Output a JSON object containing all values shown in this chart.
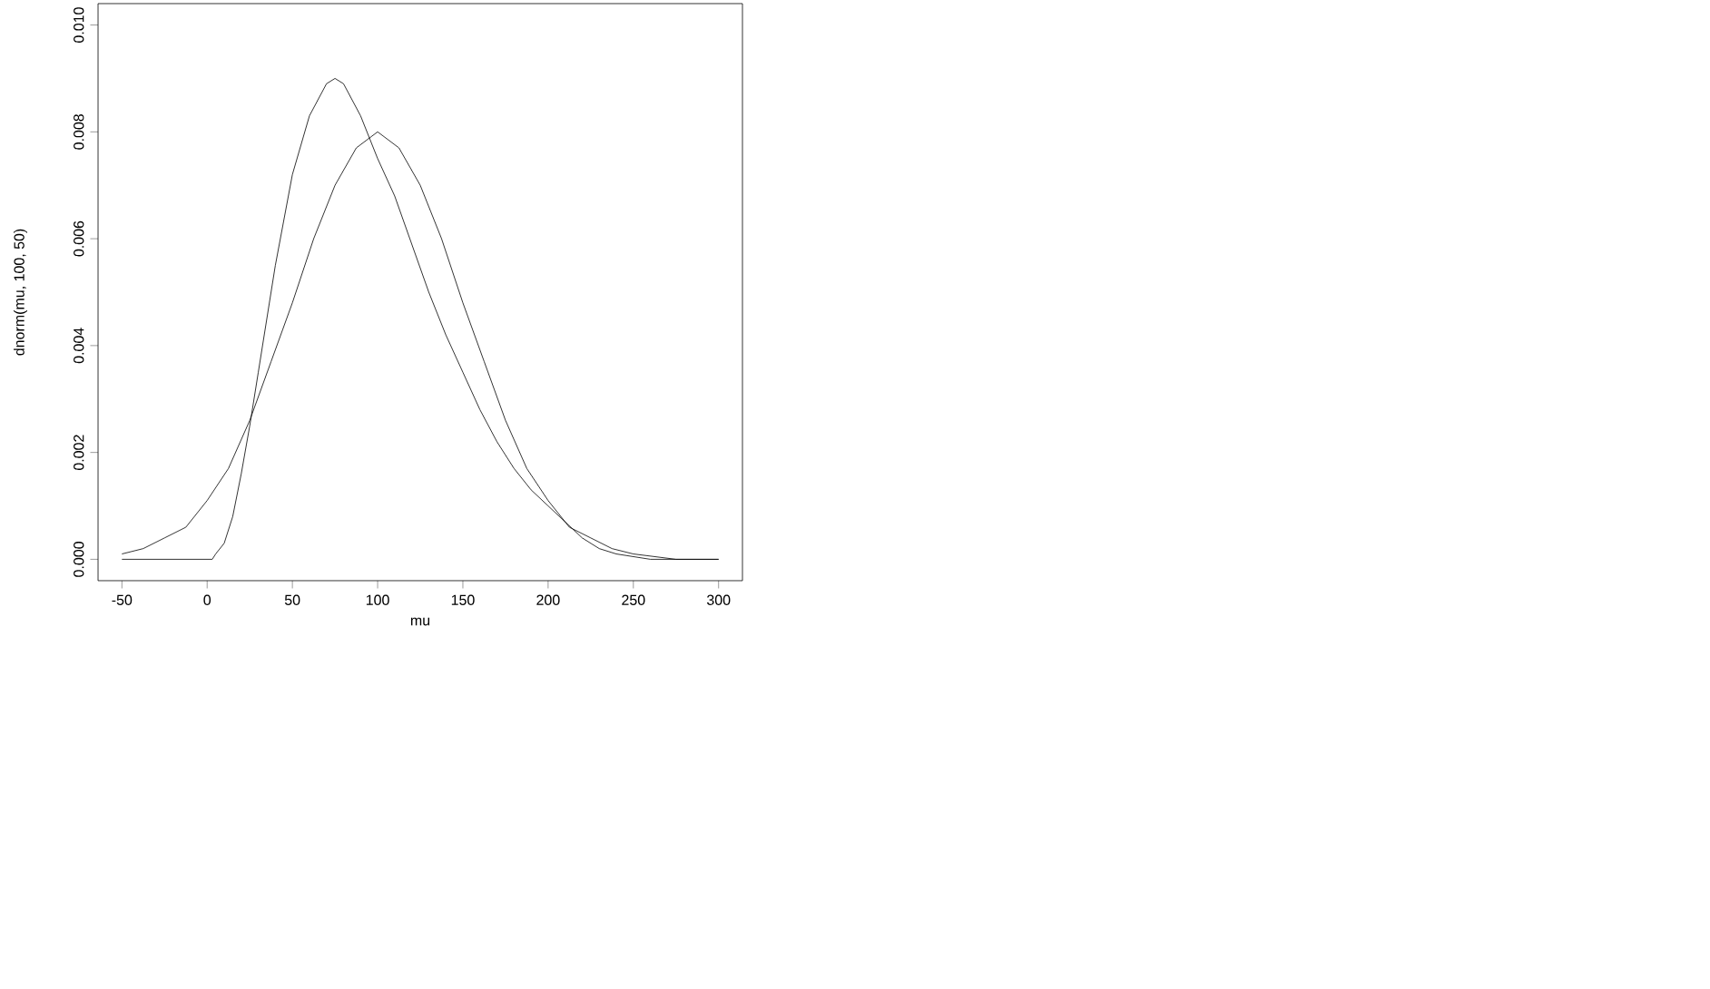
{
  "chart_data": {
    "type": "line",
    "xlabel": "mu",
    "ylabel": "dnorm(mu, 100, 50)",
    "xlim": [
      -64,
      314
    ],
    "ylim": [
      -0.0004,
      0.0104
    ],
    "xticks": [
      -50,
      0,
      50,
      100,
      150,
      200,
      250,
      300
    ],
    "yticks": [
      {
        "value": 0,
        "label": "0.000"
      },
      {
        "value": 0.002,
        "label": "0.002"
      },
      {
        "value": 0.004,
        "label": "0.004"
      },
      {
        "value": 0.006,
        "label": "0.006"
      },
      {
        "value": 0.008,
        "label": "0.008"
      },
      {
        "value": 0.01,
        "label": "0.010"
      }
    ],
    "marker": "none",
    "line_style": "solid",
    "series": [
      {
        "color": "#000000",
        "x": [
          -50,
          -37.5,
          -25,
          -12.5,
          0,
          12.5,
          25,
          37.5,
          50,
          62.5,
          75,
          87.5,
          100,
          112.5,
          125,
          137.5,
          150,
          162.5,
          175,
          187.5,
          200,
          212.5,
          225,
          237.5,
          250,
          275,
          300
        ],
        "values": [
          0.0001,
          0.0002,
          0.0004,
          0.0006,
          0.0011,
          0.0017,
          0.0026,
          0.0037,
          0.0048,
          0.006,
          0.007,
          0.0077,
          0.008,
          0.0077,
          0.007,
          0.006,
          0.0048,
          0.0037,
          0.0026,
          0.0017,
          0.0011,
          0.0006,
          0.0004,
          0.0002,
          0.0001,
          0,
          0
        ]
      },
      {
        "color": "#000000",
        "x": [
          -50,
          0,
          3,
          5,
          10,
          15,
          20,
          25,
          30,
          40,
          50,
          60,
          70,
          75,
          80,
          90,
          100,
          110,
          120,
          130,
          140,
          150,
          160,
          170,
          180,
          190,
          200,
          210,
          220,
          230,
          240,
          260,
          300
        ],
        "values": [
          0,
          0,
          0,
          0.0001,
          0.0003,
          0.0008,
          0.0016,
          0.0025,
          0.0035,
          0.0055,
          0.0072,
          0.0083,
          0.0089,
          0.009,
          0.0089,
          0.0083,
          0.0075,
          0.0068,
          0.0059,
          0.005,
          0.0042,
          0.0035,
          0.0028,
          0.0022,
          0.0017,
          0.0013,
          0.001,
          0.0007,
          0.0004,
          0.0002,
          0.0001,
          0,
          0
        ]
      }
    ]
  }
}
